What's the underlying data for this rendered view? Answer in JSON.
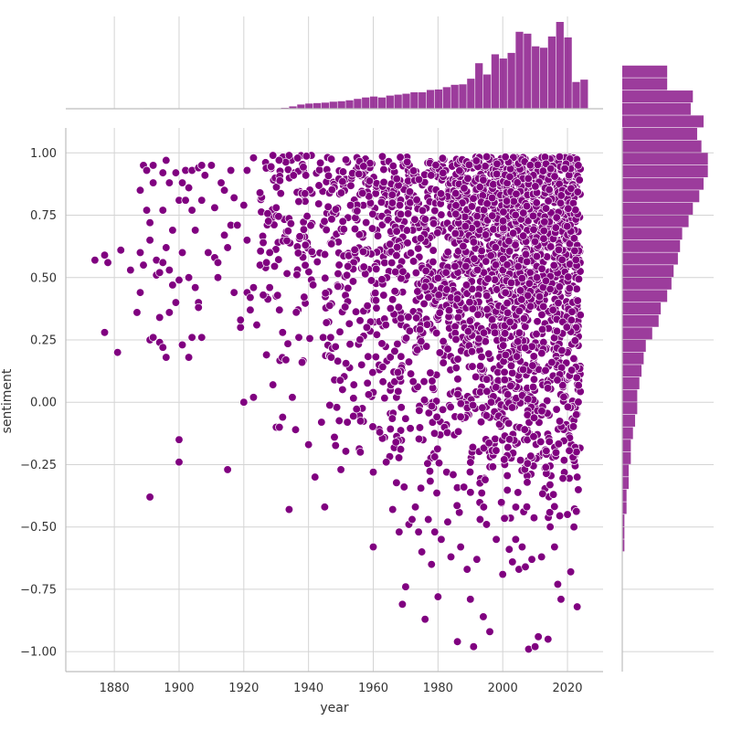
{
  "chart_data": {
    "type": "scatter",
    "subtype": "jointplot",
    "xlabel": "year",
    "ylabel": "sentiment",
    "xlim": [
      1865,
      2031
    ],
    "ylim": [
      -1.08,
      1.1
    ],
    "xticks": [
      1880,
      1900,
      1920,
      1940,
      1960,
      1980,
      2000,
      2020
    ],
    "yticks": [
      -1.0,
      -0.75,
      -0.5,
      -0.25,
      0.0,
      0.25,
      0.5,
      0.75,
      1.0
    ],
    "ytick_labels": [
      "−1.00",
      "−0.75",
      "−0.50",
      "−0.25",
      "0.00",
      "0.25",
      "0.50",
      "0.75",
      "1.00"
    ],
    "grid": true,
    "color": "#800080",
    "marginal_color": "#8b1a8b",
    "marginal_x": {
      "bin_start": 1874,
      "bin_width": 2.5,
      "counts": [
        0,
        0,
        0,
        0,
        0,
        0,
        1,
        1,
        0,
        0,
        0,
        0,
        0,
        0,
        0,
        0,
        0,
        0,
        0,
        0,
        1,
        1,
        1,
        2,
        5,
        9,
        11,
        12,
        13,
        15,
        16,
        18,
        21,
        24,
        26,
        24,
        28,
        30,
        32,
        35,
        35,
        40,
        41,
        46,
        51,
        52,
        64,
        97,
        73,
        116,
        107,
        119,
        164,
        160,
        133,
        130,
        154,
        185,
        152,
        57,
        62
      ],
      "scale_max": 185
    },
    "marginal_y": {
      "bin_start": -1.0,
      "bin_width": 0.05,
      "counts": [
        0,
        0,
        0,
        0,
        0,
        0,
        0,
        0,
        1,
        1,
        1,
        2,
        2,
        3,
        3,
        4,
        4,
        5,
        6,
        7,
        7,
        8,
        9,
        10,
        11,
        14,
        17,
        18,
        21,
        23,
        24,
        26,
        27,
        28,
        31,
        33,
        36,
        38,
        40,
        40,
        37,
        35,
        38,
        32,
        33,
        21,
        21
      ],
      "scale_max": 41
    },
    "series": [
      {
        "values_note": "individual observations (year, sentiment); dense region approximated from the plot",
        "points": [
          [
            1874,
            0.57
          ],
          [
            1877,
            0.28
          ],
          [
            1877,
            0.59
          ],
          [
            1878,
            0.56
          ],
          [
            1881,
            0.2
          ],
          [
            1882,
            0.61
          ],
          [
            1885,
            0.53
          ],
          [
            1887,
            0.36
          ],
          [
            1888,
            0.44
          ],
          [
            1888,
            0.6
          ],
          [
            1888,
            0.85
          ],
          [
            1889,
            0.95
          ],
          [
            1889,
            0.55
          ],
          [
            1890,
            0.93
          ],
          [
            1890,
            0.77
          ],
          [
            1891,
            0.72
          ],
          [
            1891,
            0.65
          ],
          [
            1891,
            0.25
          ],
          [
            1891,
            -0.38
          ],
          [
            1892,
            0.95
          ],
          [
            1892,
            0.88
          ],
          [
            1892,
            0.26
          ],
          [
            1893,
            0.51
          ],
          [
            1893,
            0.57
          ],
          [
            1894,
            0.52
          ],
          [
            1894,
            0.34
          ],
          [
            1894,
            0.24
          ],
          [
            1895,
            0.56
          ],
          [
            1895,
            0.77
          ],
          [
            1895,
            0.22
          ],
          [
            1895,
            0.92
          ],
          [
            1896,
            0.97
          ],
          [
            1896,
            0.62
          ],
          [
            1896,
            0.18
          ],
          [
            1897,
            0.53
          ],
          [
            1897,
            0.36
          ],
          [
            1897,
            0.88
          ],
          [
            1898,
            0.47
          ],
          [
            1898,
            0.69
          ],
          [
            1899,
            0.92
          ],
          [
            1899,
            0.4
          ],
          [
            1900,
            0.81
          ],
          [
            1900,
            0.49
          ],
          [
            1900,
            -0.15
          ],
          [
            1900,
            -0.24
          ],
          [
            1901,
            0.88
          ],
          [
            1901,
            0.6
          ],
          [
            1901,
            0.23
          ],
          [
            1902,
            0.93
          ],
          [
            1902,
            0.81
          ],
          [
            1903,
            0.86
          ],
          [
            1903,
            0.5
          ],
          [
            1903,
            0.18
          ],
          [
            1904,
            0.93
          ],
          [
            1904,
            0.77
          ],
          [
            1904,
            0.26
          ],
          [
            1905,
            0.69
          ],
          [
            1905,
            0.46
          ],
          [
            1906,
            0.94
          ],
          [
            1906,
            0.4
          ],
          [
            1906,
            0.38
          ],
          [
            1907,
            0.95
          ],
          [
            1907,
            0.81
          ],
          [
            1907,
            0.26
          ],
          [
            1908,
            0.91
          ],
          [
            1909,
            0.6
          ],
          [
            1910,
            0.95
          ],
          [
            1911,
            0.58
          ],
          [
            1911,
            0.78
          ],
          [
            1912,
            0.56
          ],
          [
            1912,
            0.5
          ],
          [
            1913,
            0.88
          ],
          [
            1914,
            0.67
          ],
          [
            1914,
            0.85
          ],
          [
            1915,
            -0.27
          ],
          [
            1915,
            0.62
          ],
          [
            1916,
            0.93
          ],
          [
            1916,
            0.71
          ],
          [
            1917,
            0.44
          ],
          [
            1917,
            0.82
          ],
          [
            1918,
            0.71
          ],
          [
            1919,
            0.3
          ],
          [
            1919,
            0.33
          ],
          [
            1920,
            0.0
          ],
          [
            1920,
            0.79
          ],
          [
            1921,
            0.44
          ],
          [
            1921,
            0.65
          ],
          [
            1921,
            0.93
          ],
          [
            1922,
            0.42
          ],
          [
            1922,
            0.37
          ],
          [
            1923,
            0.02
          ],
          [
            1923,
            0.46
          ],
          [
            1923,
            0.98
          ],
          [
            1924,
            0.31
          ],
          [
            1925,
            0.84
          ],
          [
            1925,
            0.55
          ],
          [
            1926,
            0.43
          ],
          [
            1926,
            0.64
          ],
          [
            1927,
            0.56
          ],
          [
            1927,
            0.19
          ],
          [
            1928,
            0.46
          ],
          [
            1928,
            0.6
          ],
          [
            1929,
            0.99
          ],
          [
            1929,
            0.07
          ],
          [
            1930,
            -0.1
          ],
          [
            1930,
            0.78
          ],
          [
            1931,
            -0.1
          ],
          [
            1931,
            0.37
          ],
          [
            1932,
            -0.06
          ],
          [
            1932,
            0.28
          ],
          [
            1933,
            0.17
          ],
          [
            1934,
            -0.43
          ],
          [
            1934,
            0.99
          ],
          [
            1935,
            0.02
          ],
          [
            1936,
            -0.11
          ],
          [
            1937,
            0.26
          ],
          [
            1938,
            0.16
          ],
          [
            1940,
            -0.17
          ],
          [
            1942,
            -0.3
          ],
          [
            1944,
            -0.08
          ],
          [
            1945,
            -0.42
          ],
          [
            1947,
            0.18
          ],
          [
            1948,
            -0.14
          ],
          [
            1950,
            -0.27
          ],
          [
            1952,
            -0.08
          ],
          [
            1954,
            0.07
          ],
          [
            1956,
            -0.2
          ],
          [
            1958,
            0.3
          ],
          [
            1960,
            -0.58
          ],
          [
            1960,
            -0.28
          ],
          [
            1962,
            -0.12
          ],
          [
            1964,
            -0.24
          ],
          [
            1966,
            -0.43
          ],
          [
            1967,
            -0.16
          ],
          [
            1968,
            -0.52
          ],
          [
            1969,
            -0.81
          ],
          [
            1970,
            -0.74
          ],
          [
            1971,
            -0.49
          ],
          [
            1972,
            -0.47
          ],
          [
            1973,
            -0.42
          ],
          [
            1974,
            -0.52
          ],
          [
            1975,
            -0.6
          ],
          [
            1976,
            -0.87
          ],
          [
            1977,
            -0.47
          ],
          [
            1978,
            -0.65
          ],
          [
            1979,
            -0.52
          ],
          [
            1980,
            -0.78
          ],
          [
            1981,
            -0.55
          ],
          [
            1983,
            -0.48
          ],
          [
            1984,
            -0.62
          ],
          [
            1986,
            -0.96
          ],
          [
            1987,
            -0.58
          ],
          [
            1988,
            -0.34
          ],
          [
            1989,
            -0.67
          ],
          [
            1990,
            -0.79
          ],
          [
            1991,
            -0.98
          ],
          [
            1992,
            -0.63
          ],
          [
            1993,
            -0.47
          ],
          [
            1994,
            -0.86
          ],
          [
            1995,
            -0.49
          ],
          [
            1996,
            -0.92
          ],
          [
            1998,
            -0.55
          ],
          [
            2000,
            -0.69
          ],
          [
            2002,
            -0.59
          ],
          [
            2003,
            -0.64
          ],
          [
            2004,
            -0.55
          ],
          [
            2005,
            -0.67
          ],
          [
            2006,
            -0.58
          ],
          [
            2007,
            -0.66
          ],
          [
            2008,
            -0.99
          ],
          [
            2009,
            -0.63
          ],
          [
            2010,
            -0.98
          ],
          [
            2011,
            -0.94
          ],
          [
            2012,
            -0.62
          ],
          [
            2014,
            -0.95
          ],
          [
            2016,
            -0.58
          ],
          [
            2017,
            -0.73
          ],
          [
            2018,
            -0.79
          ],
          [
            2020,
            -0.45
          ],
          [
            2021,
            -0.68
          ],
          [
            2022,
            -0.5
          ],
          [
            2023,
            -0.82
          ],
          [
            2023,
            -0.3
          ],
          [
            2024,
            0.35
          ]
        ]
      }
    ]
  }
}
